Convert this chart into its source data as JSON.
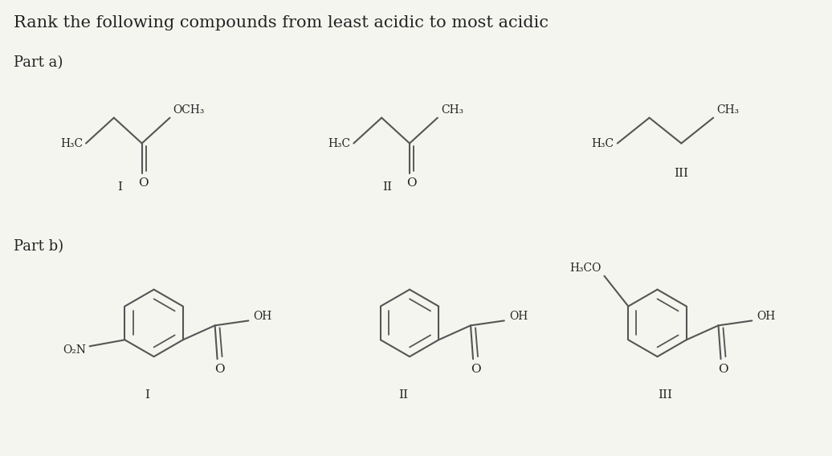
{
  "title": "Rank the following compounds from least acidic to most acidic",
  "title_fontsize": 15,
  "part_a_label": "Part a)",
  "part_b_label": "Part b)",
  "part_fontsize": 13,
  "bg_color": "#f5f5f0",
  "line_color": "#555555",
  "text_color": "#222222",
  "struct_lw": 1.5,
  "fig_w": 10.36,
  "fig_h": 5.68
}
